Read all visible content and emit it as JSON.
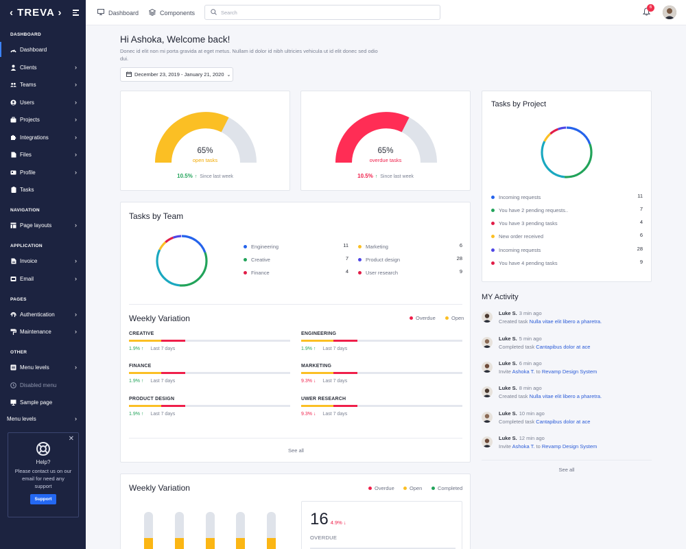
{
  "brand": {
    "name": "‹ TREVA ›"
  },
  "sidebar": {
    "sections": [
      {
        "title": "DASHBOARD"
      },
      {
        "title": "NAVIGATION"
      },
      {
        "title": "APPLICATION"
      },
      {
        "title": "PAGES"
      },
      {
        "title": "OTHER"
      }
    ],
    "items": [
      {
        "label": "Dashboard",
        "icon": "dashboard-icon",
        "active": true,
        "chevron": false
      },
      {
        "label": "Clients",
        "icon": "user-icon",
        "chevron": true
      },
      {
        "label": "Teams",
        "icon": "users-icon",
        "chevron": true
      },
      {
        "label": "Users",
        "icon": "user-circle-icon",
        "chevron": true
      },
      {
        "label": "Projects",
        "icon": "briefcase-icon",
        "chevron": true
      },
      {
        "label": "Integrations",
        "icon": "puzzle-icon",
        "chevron": true
      },
      {
        "label": "Files",
        "icon": "file-icon",
        "chevron": true
      },
      {
        "label": "Profile",
        "icon": "id-card-icon",
        "chevron": true
      },
      {
        "label": "Tasks",
        "icon": "clipboard-icon",
        "chevron": false
      },
      {
        "label": "Page layouts",
        "icon": "layout-icon",
        "chevron": true
      },
      {
        "label": "Invoice",
        "icon": "invoice-icon",
        "chevron": true
      },
      {
        "label": "Email",
        "icon": "mail-icon",
        "chevron": true
      },
      {
        "label": "Authentication",
        "icon": "fingerprint-icon",
        "chevron": true
      },
      {
        "label": "Maintenance",
        "icon": "paint-roller-icon",
        "chevron": true
      },
      {
        "label": "Menu levels",
        "icon": "stack-icon",
        "chevron": true
      },
      {
        "label": "Disabled menu",
        "icon": "clock-icon",
        "chevron": false,
        "disabled": true
      },
      {
        "label": "Sample page",
        "icon": "monitor-icon",
        "chevron": false
      },
      {
        "label": "Menu levels",
        "icon": "",
        "chevron": true
      }
    ],
    "help": {
      "title": "Help?",
      "text": "Please contact us on our email for need any support",
      "button": "Support"
    }
  },
  "topbar": {
    "links": [
      {
        "label": "Dashboard",
        "icon": "monitor-icon"
      },
      {
        "label": "Components",
        "icon": "layers-icon"
      }
    ],
    "search_placeholder": "Search",
    "notification_count": "6"
  },
  "welcome": {
    "title": "Hi Ashoka, Welcome back!",
    "text": "Donec id elit non mi porta gravida at eget metus. Nullam id dolor id nibh ultricies vehicula ut id elit donec sed odio dui.",
    "date_range": "December 23, 2019 - January 21, 2020"
  },
  "gauges": [
    {
      "percent": "65%",
      "label": "open tasks",
      "change": "10.5%",
      "arrow": "↑",
      "since": "Since last week",
      "color": "#fbbf24",
      "fill": 0.65
    },
    {
      "percent": "65%",
      "label": "overdue tasks",
      "change": "10.5%",
      "arrow": "↑",
      "since": "Since last week",
      "color": "#ff2d55",
      "fill": 0.65
    }
  ],
  "tasks_by_project": {
    "title": "Tasks by Project",
    "rows": [
      {
        "label": "Incoming requests",
        "value": "11",
        "color": "#2563eb"
      },
      {
        "label": "You have 2 pending requests..",
        "value": "7",
        "color": "#22a35a"
      },
      {
        "label": "You have 3 pending tasks",
        "value": "4",
        "color": "#e11d48"
      },
      {
        "label": "New order received",
        "value": "6",
        "color": "#fbbf24"
      },
      {
        "label": "Incoming requests",
        "value": "28",
        "color": "#4f46e5"
      },
      {
        "label": "You have 4 pending tasks",
        "value": "9",
        "color": "#e11d48"
      }
    ]
  },
  "tasks_by_team": {
    "title": "Tasks by Team",
    "left": [
      {
        "label": "Engineering",
        "value": "11",
        "color": "#2563eb"
      },
      {
        "label": "Creative",
        "value": "7",
        "color": "#22a35a"
      },
      {
        "label": "Finance",
        "value": "4",
        "color": "#e11d48"
      }
    ],
    "right": [
      {
        "label": "Marketing",
        "value": "6",
        "color": "#fbbf24"
      },
      {
        "label": "Product design",
        "value": "28",
        "color": "#4f46e5"
      },
      {
        "label": "User research",
        "value": "9",
        "color": "#e11d48"
      }
    ]
  },
  "weekly_variation": {
    "title": "Weekly Variation",
    "legend": [
      {
        "label": "Overdue",
        "color": "#ef1f4a"
      },
      {
        "label": "Open",
        "color": "#fbbf24"
      }
    ],
    "rows": [
      {
        "label": "CREATIVE",
        "pct": "1.9%",
        "arrow": "↑",
        "trend": "up",
        "period": "Last 7 days"
      },
      {
        "label": "ENGINEERING",
        "pct": "1.9%",
        "arrow": "↑",
        "trend": "up",
        "period": "Last 7 days"
      },
      {
        "label": "FINANCE",
        "pct": "1.9%",
        "arrow": "↑",
        "trend": "up",
        "period": "Last 7 days"
      },
      {
        "label": "MARKETING",
        "pct": "9.3%",
        "arrow": "↓",
        "trend": "down",
        "period": "Last 7 days"
      },
      {
        "label": "PRODUCT DESIGN",
        "pct": "1.9%",
        "arrow": "↑",
        "trend": "up",
        "period": "Last 7 days"
      },
      {
        "label": "UWER RESEARCH",
        "pct": "9.3%",
        "arrow": "↓",
        "trend": "down",
        "period": "Last 7 days"
      }
    ],
    "see_all": "See all"
  },
  "activity": {
    "title": "MY Activity",
    "items": [
      {
        "name": "Luke S.",
        "time": "3 min ago",
        "action": "Created task ",
        "link": "Nulla vitae elit libero a pharetra.",
        "mid": "",
        "link2": ""
      },
      {
        "name": "Luke S.",
        "time": "5 min ago",
        "action": "Completed task ",
        "link": "Cantapibus dolor at ace",
        "mid": "",
        "link2": ""
      },
      {
        "name": "Luke S.",
        "time": "6 min ago",
        "action": "Invite ",
        "link": "Ashoka T.",
        "mid": " to ",
        "link2": "Revamp Design System"
      },
      {
        "name": "Luke S.",
        "time": "8 min ago",
        "action": "Created task ",
        "link": "Nulla vitae elit libero a pharetra.",
        "mid": "",
        "link2": ""
      },
      {
        "name": "Luke S.",
        "time": "10 min ago",
        "action": "Completed task ",
        "link": "Cantapibus dolor at ace",
        "mid": "",
        "link2": ""
      },
      {
        "name": "Luke S.",
        "time": "12 min ago",
        "action": "Invite ",
        "link": "Ashoka T.",
        "mid": " to ",
        "link2": "Revamp Design System"
      }
    ],
    "see_all": "See all"
  },
  "weekly_variation_2": {
    "title": "Weekly Variation",
    "legend": [
      {
        "label": "Overdue",
        "color": "#ef1f4a"
      },
      {
        "label": "Open",
        "color": "#fbbf24"
      },
      {
        "label": "Completed",
        "color": "#22a35a"
      }
    ],
    "stat": {
      "value": "16",
      "change": "4.9%",
      "arrow": "↓",
      "label": "OVERDUE"
    }
  }
}
